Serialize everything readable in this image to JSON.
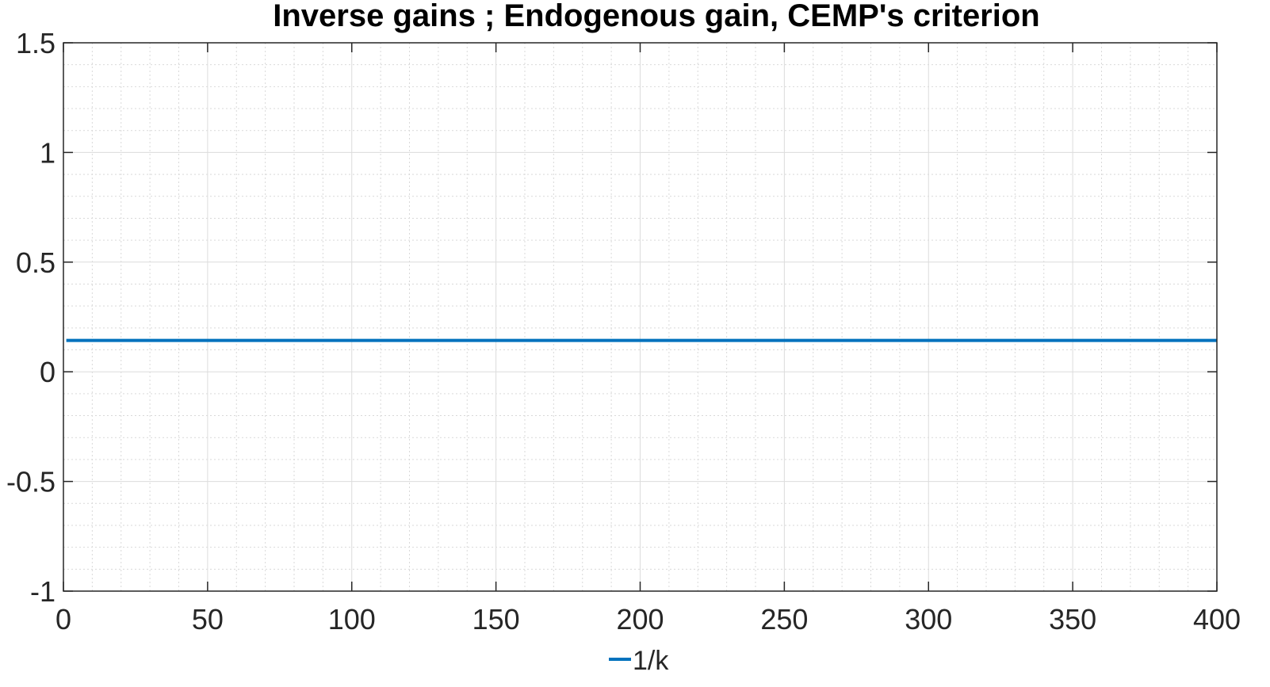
{
  "chart_data": {
    "type": "line",
    "title": "Inverse gains ; Endogenous gain, CEMP's criterion",
    "xlabel": "",
    "ylabel": "",
    "xlim": [
      0,
      400
    ],
    "ylim": [
      -1,
      1.5
    ],
    "x_ticks": [
      0,
      50,
      100,
      150,
      200,
      250,
      300,
      350,
      400
    ],
    "y_ticks": [
      -1,
      -0.5,
      0,
      0.5,
      1,
      1.5
    ],
    "x_tick_labels": [
      "0",
      "50",
      "100",
      "150",
      "200",
      "250",
      "300",
      "350",
      "400"
    ],
    "y_tick_labels": [
      "-1",
      "-0.5",
      "0",
      "0.5",
      "1",
      "1.5"
    ],
    "grid": true,
    "minor_grid": true,
    "legend_position": "bottom",
    "series": [
      {
        "name": "1/k",
        "color": "#0072BD",
        "x": [
          1,
          400
        ],
        "y": [
          0.1429,
          0.1429
        ]
      }
    ]
  }
}
